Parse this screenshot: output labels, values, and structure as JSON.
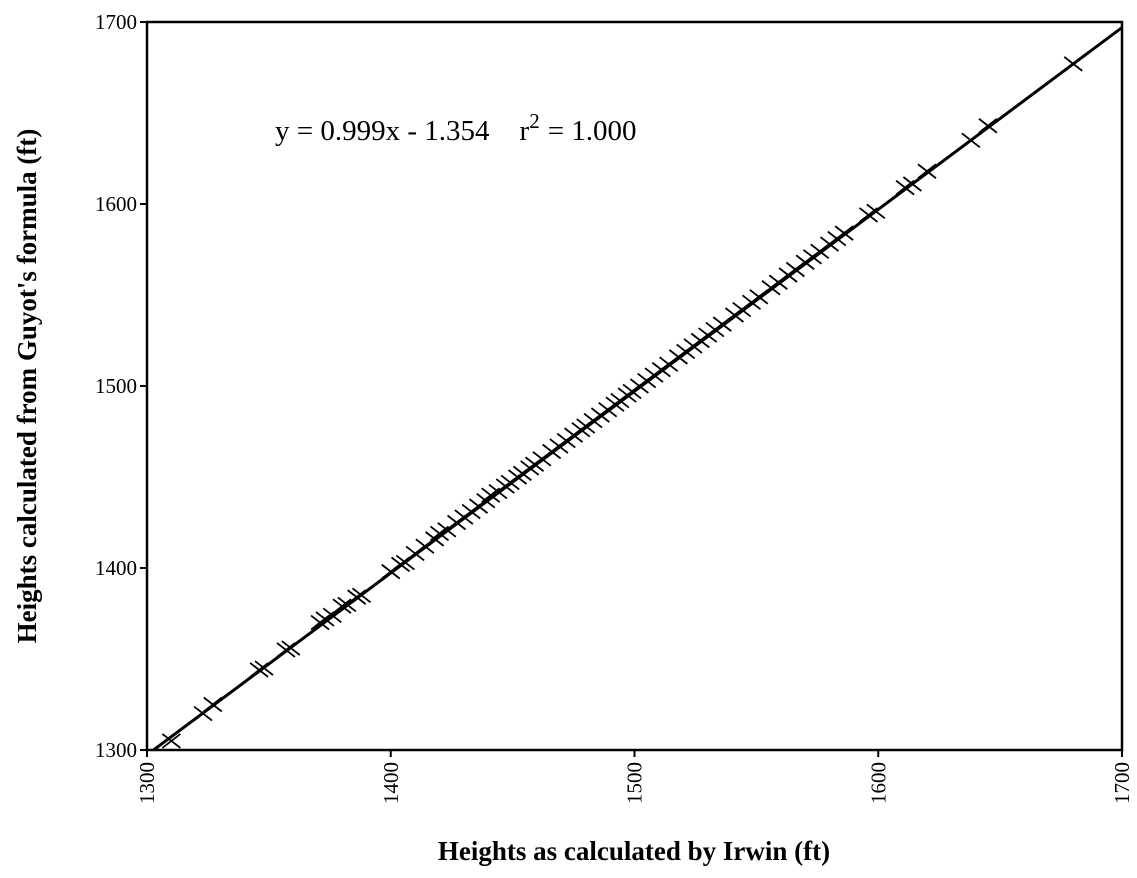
{
  "chart_data": {
    "type": "scatter",
    "x_label": "Heights as calculated by Irwin (ft)",
    "y_label": "Heights calculated from Guyot's formula (ft)",
    "annotation": [
      "y = 0.999x - 1.354",
      "r",
      "2",
      "= 1.000"
    ],
    "trendline": {
      "slope": 0.999,
      "intercept": -1.354
    },
    "color": "#000000",
    "marker": "x",
    "xlim": [
      1300,
      1700
    ],
    "xticks": [
      1300,
      1400,
      1500,
      1600,
      1700
    ],
    "ylim": [
      1300,
      1700
    ],
    "yticks": [
      1300,
      1400,
      1500,
      1600,
      1700
    ],
    "grid": false,
    "x": [
      1310,
      1323,
      1327,
      1346,
      1348,
      1357,
      1359,
      1371,
      1373,
      1376,
      1380,
      1382,
      1386,
      1388,
      1400,
      1404,
      1406,
      1410,
      1414,
      1418,
      1420,
      1423,
      1427,
      1430,
      1433,
      1436,
      1439,
      1441,
      1444,
      1447,
      1449,
      1452,
      1454,
      1457,
      1459,
      1462,
      1466,
      1469,
      1472,
      1475,
      1478,
      1480,
      1483,
      1486,
      1489,
      1492,
      1494,
      1497,
      1499,
      1502,
      1505,
      1508,
      1511,
      1514,
      1518,
      1521,
      1524,
      1527,
      1530,
      1533,
      1536,
      1541,
      1544,
      1548,
      1551,
      1556,
      1559,
      1563,
      1566,
      1570,
      1573,
      1576,
      1580,
      1583,
      1586,
      1596,
      1599,
      1611,
      1614,
      1620,
      1638,
      1645,
      1680
    ],
    "values": [
      1305,
      1320,
      1325,
      1344,
      1345,
      1355,
      1356,
      1370,
      1372,
      1374,
      1379,
      1380,
      1384,
      1385,
      1398,
      1402,
      1403,
      1408,
      1412,
      1416,
      1419,
      1421,
      1425,
      1428,
      1431,
      1434,
      1437,
      1440,
      1442,
      1445,
      1447,
      1450,
      1452,
      1455,
      1457,
      1460,
      1464,
      1467,
      1470,
      1473,
      1476,
      1478,
      1481,
      1484,
      1487,
      1490,
      1492,
      1495,
      1497,
      1500,
      1503,
      1506,
      1509,
      1512,
      1516,
      1519,
      1522,
      1525,
      1528,
      1531,
      1534,
      1539,
      1542,
      1546,
      1549,
      1554,
      1557,
      1561,
      1564,
      1568,
      1571,
      1574,
      1578,
      1581,
      1584,
      1594,
      1596,
      1609,
      1611,
      1618,
      1635,
      1643,
      1677
    ]
  }
}
